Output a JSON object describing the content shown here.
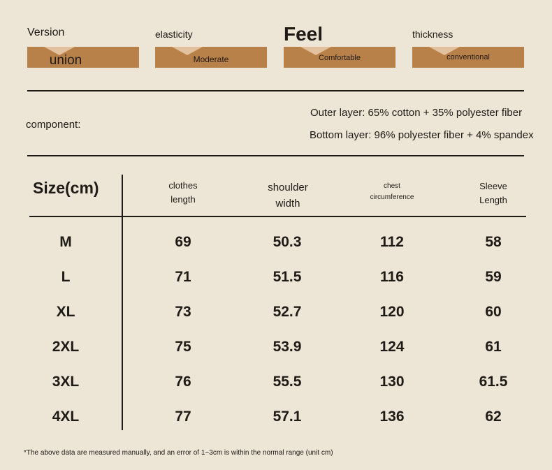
{
  "attributes": [
    {
      "title": "Version",
      "value": "union"
    },
    {
      "title": "elasticity",
      "value": "Moderate"
    },
    {
      "title": "Feel",
      "value": "Comfortable"
    },
    {
      "title": "thickness",
      "value": "conventional"
    }
  ],
  "component": {
    "label": "component:",
    "outer": "Outer layer: 65% cotton + 35% polyester fiber",
    "bottom": "Bottom layer: 96% polyester fiber + 4% spandex"
  },
  "table": {
    "size_header": "Size(cm)",
    "columns": [
      {
        "line1": "clothes",
        "line2": "length"
      },
      {
        "line1": "shoulder",
        "line2": "width"
      },
      {
        "line1": "chest",
        "line2": "circumference"
      },
      {
        "line1": "Sleeve",
        "line2": "Length"
      }
    ],
    "rows": [
      {
        "size": "M",
        "values": [
          "69",
          "50.3",
          "112",
          "58"
        ]
      },
      {
        "size": "L",
        "values": [
          "71",
          "51.5",
          "116",
          "59"
        ]
      },
      {
        "size": "XL",
        "values": [
          "73",
          "52.7",
          "120",
          "60"
        ]
      },
      {
        "size": "2XL",
        "values": [
          "75",
          "53.9",
          "124",
          "61"
        ]
      },
      {
        "size": "3XL",
        "values": [
          "76",
          "55.5",
          "130",
          "61.5"
        ]
      },
      {
        "size": "4XL",
        "values": [
          "77",
          "57.1",
          "136",
          "62"
        ]
      }
    ]
  },
  "footnote": "*The above data are measured manually, and an error of 1~3cm is within the normal range (unit cm)",
  "colors": {
    "background": "#ede5d5",
    "bar": "#b9814a",
    "text": "#1e1a16"
  }
}
